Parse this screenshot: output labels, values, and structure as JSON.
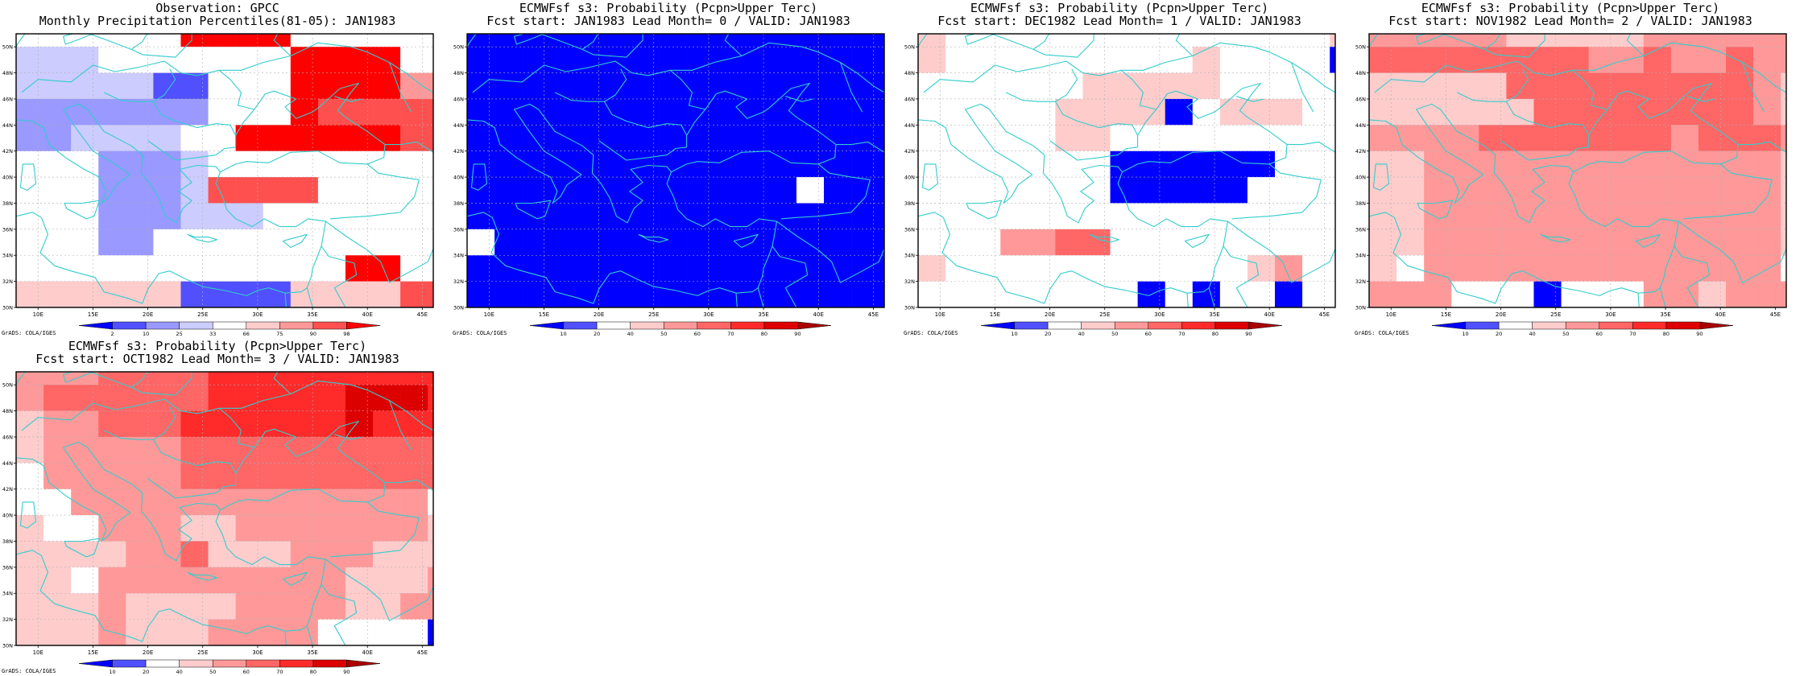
{
  "credit": "GrADS: COLA/IGES",
  "map": {
    "lon_ticks": [
      "10E",
      "15E",
      "20E",
      "25E",
      "30E",
      "35E",
      "40E",
      "45E"
    ],
    "lat_ticks": [
      "30N",
      "32N",
      "34N",
      "36N",
      "38N",
      "40N",
      "42N",
      "44N",
      "46N",
      "48N",
      "50N"
    ],
    "lon_range": [
      8,
      46
    ],
    "lat_range": [
      30,
      51
    ],
    "cell_lon": 2.5,
    "cell_lat": 2.0,
    "coast_color": "#33cccc"
  },
  "scales": {
    "obs": {
      "labels": [
        "2",
        "10",
        "25",
        "33",
        "66",
        "75",
        "90",
        "98"
      ],
      "colors": [
        "#0000ff",
        "#5050ff",
        "#9999ff",
        "#ccccff",
        "#ffffff",
        "#ffcccc",
        "#ff9999",
        "#ff5050",
        "#ff0000"
      ]
    },
    "prob": {
      "labels": [
        "10",
        "20",
        "40",
        "50",
        "60",
        "70",
        "80",
        "90"
      ],
      "colors": [
        "#0000ff",
        "#5050ff",
        "#ffffff",
        "#ffcccc",
        "#ff9999",
        "#ff6666",
        "#ff2a2a",
        "#dd0000",
        "#aa0000"
      ]
    }
  },
  "panels": [
    {
      "title1": "Observation: GPCC",
      "title2": "Monthly Precipitation Percentiles(81-05): JAN1983",
      "scale": "obs",
      "grid": [
        "4444448888444444",
        "3334444444888844",
        "3333311444888866",
        "2222222444877777",
        "2233334488888877",
        "4442223444444444",
        "4442223777744444",
        "4442223334444444",
        "4442244444444444",
        "4444444444448844",
        "5555551111555577"
      ]
    },
    {
      "title1": "ECMWFsf s3: Probability (Pcpn>Upper Terc)",
      "title2": "Fcst start: JAN1983  Lead Month= 0 / VALID: JAN1983",
      "scale": "prob",
      "grid": [
        "0000000000000000",
        "0000000000000000",
        "0000000000000000",
        "0000000000000000",
        "0000000000000000",
        "0000000000000000",
        "0000000000002000",
        "0000000000000000",
        "2000000000000000",
        "0000000000000000",
        "0000000000000000"
      ]
    },
    {
      "title1": "ECMWFsf s3: Probability (Pcpn>Upper Terc)",
      "title2": "Fcst start: DEC1982  Lead Month= 1 / VALID: JAN1983",
      "scale": "prob",
      "grid": [
        "3222222222222223",
        "3222222222322220",
        "2222223333322222",
        "2222233330233322",
        "2222233222222222",
        "2222222000000222",
        "2222222000002222",
        "2222222222222222",
        "2224455222222222",
        "3222222222223422",
        "2222222202022022"
      ]
    },
    {
      "title1": "ECMWFsf s3: Probability (Pcpn>Upper Terc)",
      "title2": "Fcst start: NOV1982  Lead Month= 2 / VALID: JAN1983",
      "scale": "prob",
      "grid": [
        "4444433333444444",
        "5555555544544544",
        "3333355555555543",
        "3333335555555543",
        "4444555555545554",
        "3344444444444443",
        "3344444444444443",
        "3344444444444443",
        "3344444444444443",
        "3244444444444442",
        "4442220222443444"
      ]
    },
    {
      "title1": "ECMWFsf s3: Probability (Pcpn>Upper Terc)",
      "title2": "Fcst start: OCT1982  Lead Month= 3 / VALID: JAN1983",
      "scale": "prob",
      "grid": [
        "4445555666666666",
        "4555555666667776",
        "3445556666667666",
        "3444445555555555",
        "2444445555555555",
        "2244444444444442",
        "3224443344444443",
        "3333445333444333",
        "3324444444443334",
        "3334333344443344",
        "3334333444422220"
      ]
    }
  ]
}
